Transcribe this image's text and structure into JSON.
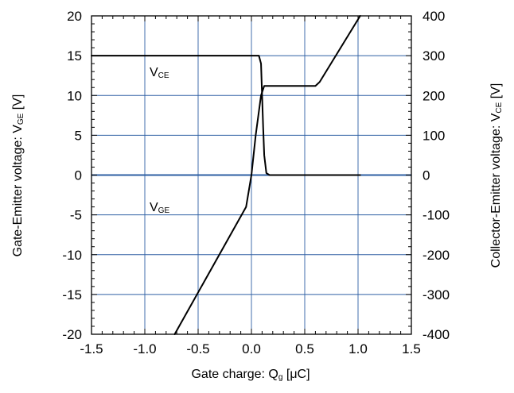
{
  "chart_data": {
    "type": "line",
    "title": "",
    "xlabel_main": "Gate charge: Q",
    "xlabel_sub": "g",
    "xlabel_unit": " [μC]",
    "ylabel_left_main": "Gate-Emitter voltage:  V",
    "ylabel_left_sub": "GE",
    "ylabel_left_unit": " [V]",
    "ylabel_right_main": "Collector-Emitter voltage: V",
    "ylabel_right_sub": "CE",
    "ylabel_right_unit": " [V]",
    "xlim": [
      -1.5,
      1.5
    ],
    "ylim_left": [
      -20,
      20
    ],
    "ylim_right": [
      -400,
      400
    ],
    "x_ticks": [
      "-1.5",
      "-1.0",
      "-0.5",
      "0.0",
      "0.5",
      "1.0",
      "1.5"
    ],
    "y_left_ticks": [
      "20",
      "15",
      "10",
      "5",
      "0",
      "-5",
      "-10",
      "-15",
      "-20"
    ],
    "y_right_ticks": [
      "400",
      "300",
      "200",
      "100",
      "0",
      "-100",
      "-200",
      "-300",
      "-400"
    ],
    "grid": true,
    "colors": {
      "grid": "#2e5fa3",
      "curve": "#000000",
      "zero_line": "#2e5fa3"
    },
    "series": [
      {
        "name": "V_CE",
        "label_main": "V",
        "label_sub": "CE",
        "axis": "right",
        "x": [
          -1.5,
          0.07,
          0.09,
          0.1,
          0.11,
          0.12,
          0.14,
          0.17,
          0.3,
          0.5,
          1.02
        ],
        "y": [
          300,
          300,
          280,
          200,
          120,
          50,
          5,
          0,
          0,
          0,
          0
        ]
      },
      {
        "name": "V_GE",
        "label_main": "V",
        "label_sub": "GE",
        "axis": "left",
        "x": [
          -0.72,
          -0.05,
          0.0,
          0.04,
          0.09,
          0.12,
          0.6,
          0.64,
          1.02
        ],
        "y": [
          -20,
          -4,
          0,
          5,
          10,
          11.2,
          11.2,
          11.7,
          20
        ]
      }
    ]
  }
}
